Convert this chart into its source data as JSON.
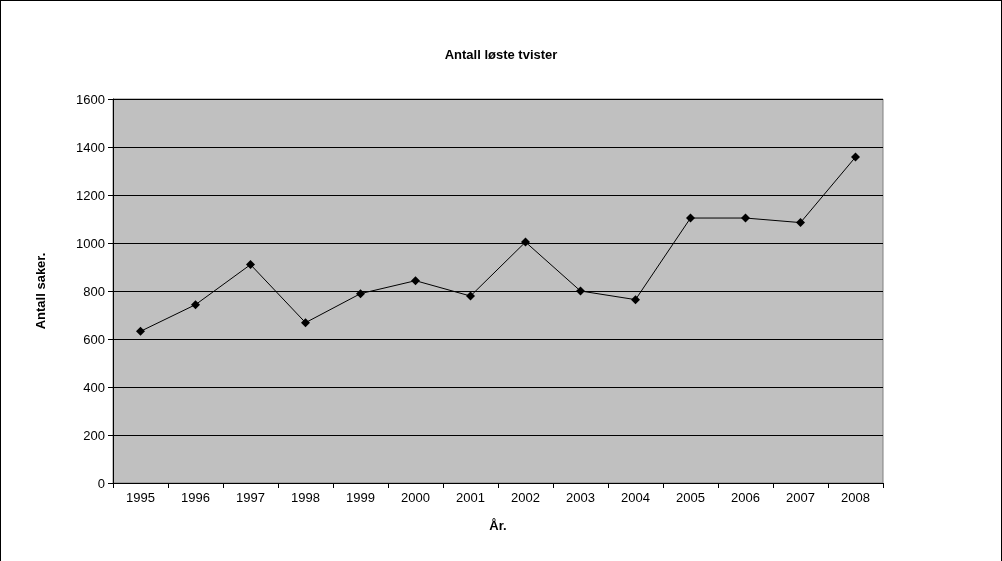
{
  "chart_data": {
    "type": "line",
    "title": "Antall løste tvister",
    "xlabel": "År.",
    "ylabel": "Antall saker.",
    "categories": [
      "1995",
      "1996",
      "1997",
      "1998",
      "1999",
      "2000",
      "2001",
      "2002",
      "2003",
      "2004",
      "2005",
      "2006",
      "2007",
      "2008"
    ],
    "series": [
      {
        "color": "#000000",
        "values": [
          632,
          743,
          910,
          668,
          789,
          843,
          779,
          1004,
          800,
          764,
          1104,
          1104,
          1085,
          1358
        ]
      }
    ],
    "ylim": [
      0,
      1600
    ],
    "yticks": [
      0,
      200,
      400,
      600,
      800,
      1000,
      1200,
      1400,
      1600
    ],
    "grid": "y",
    "marker": "diamond",
    "line_style": "solid"
  }
}
